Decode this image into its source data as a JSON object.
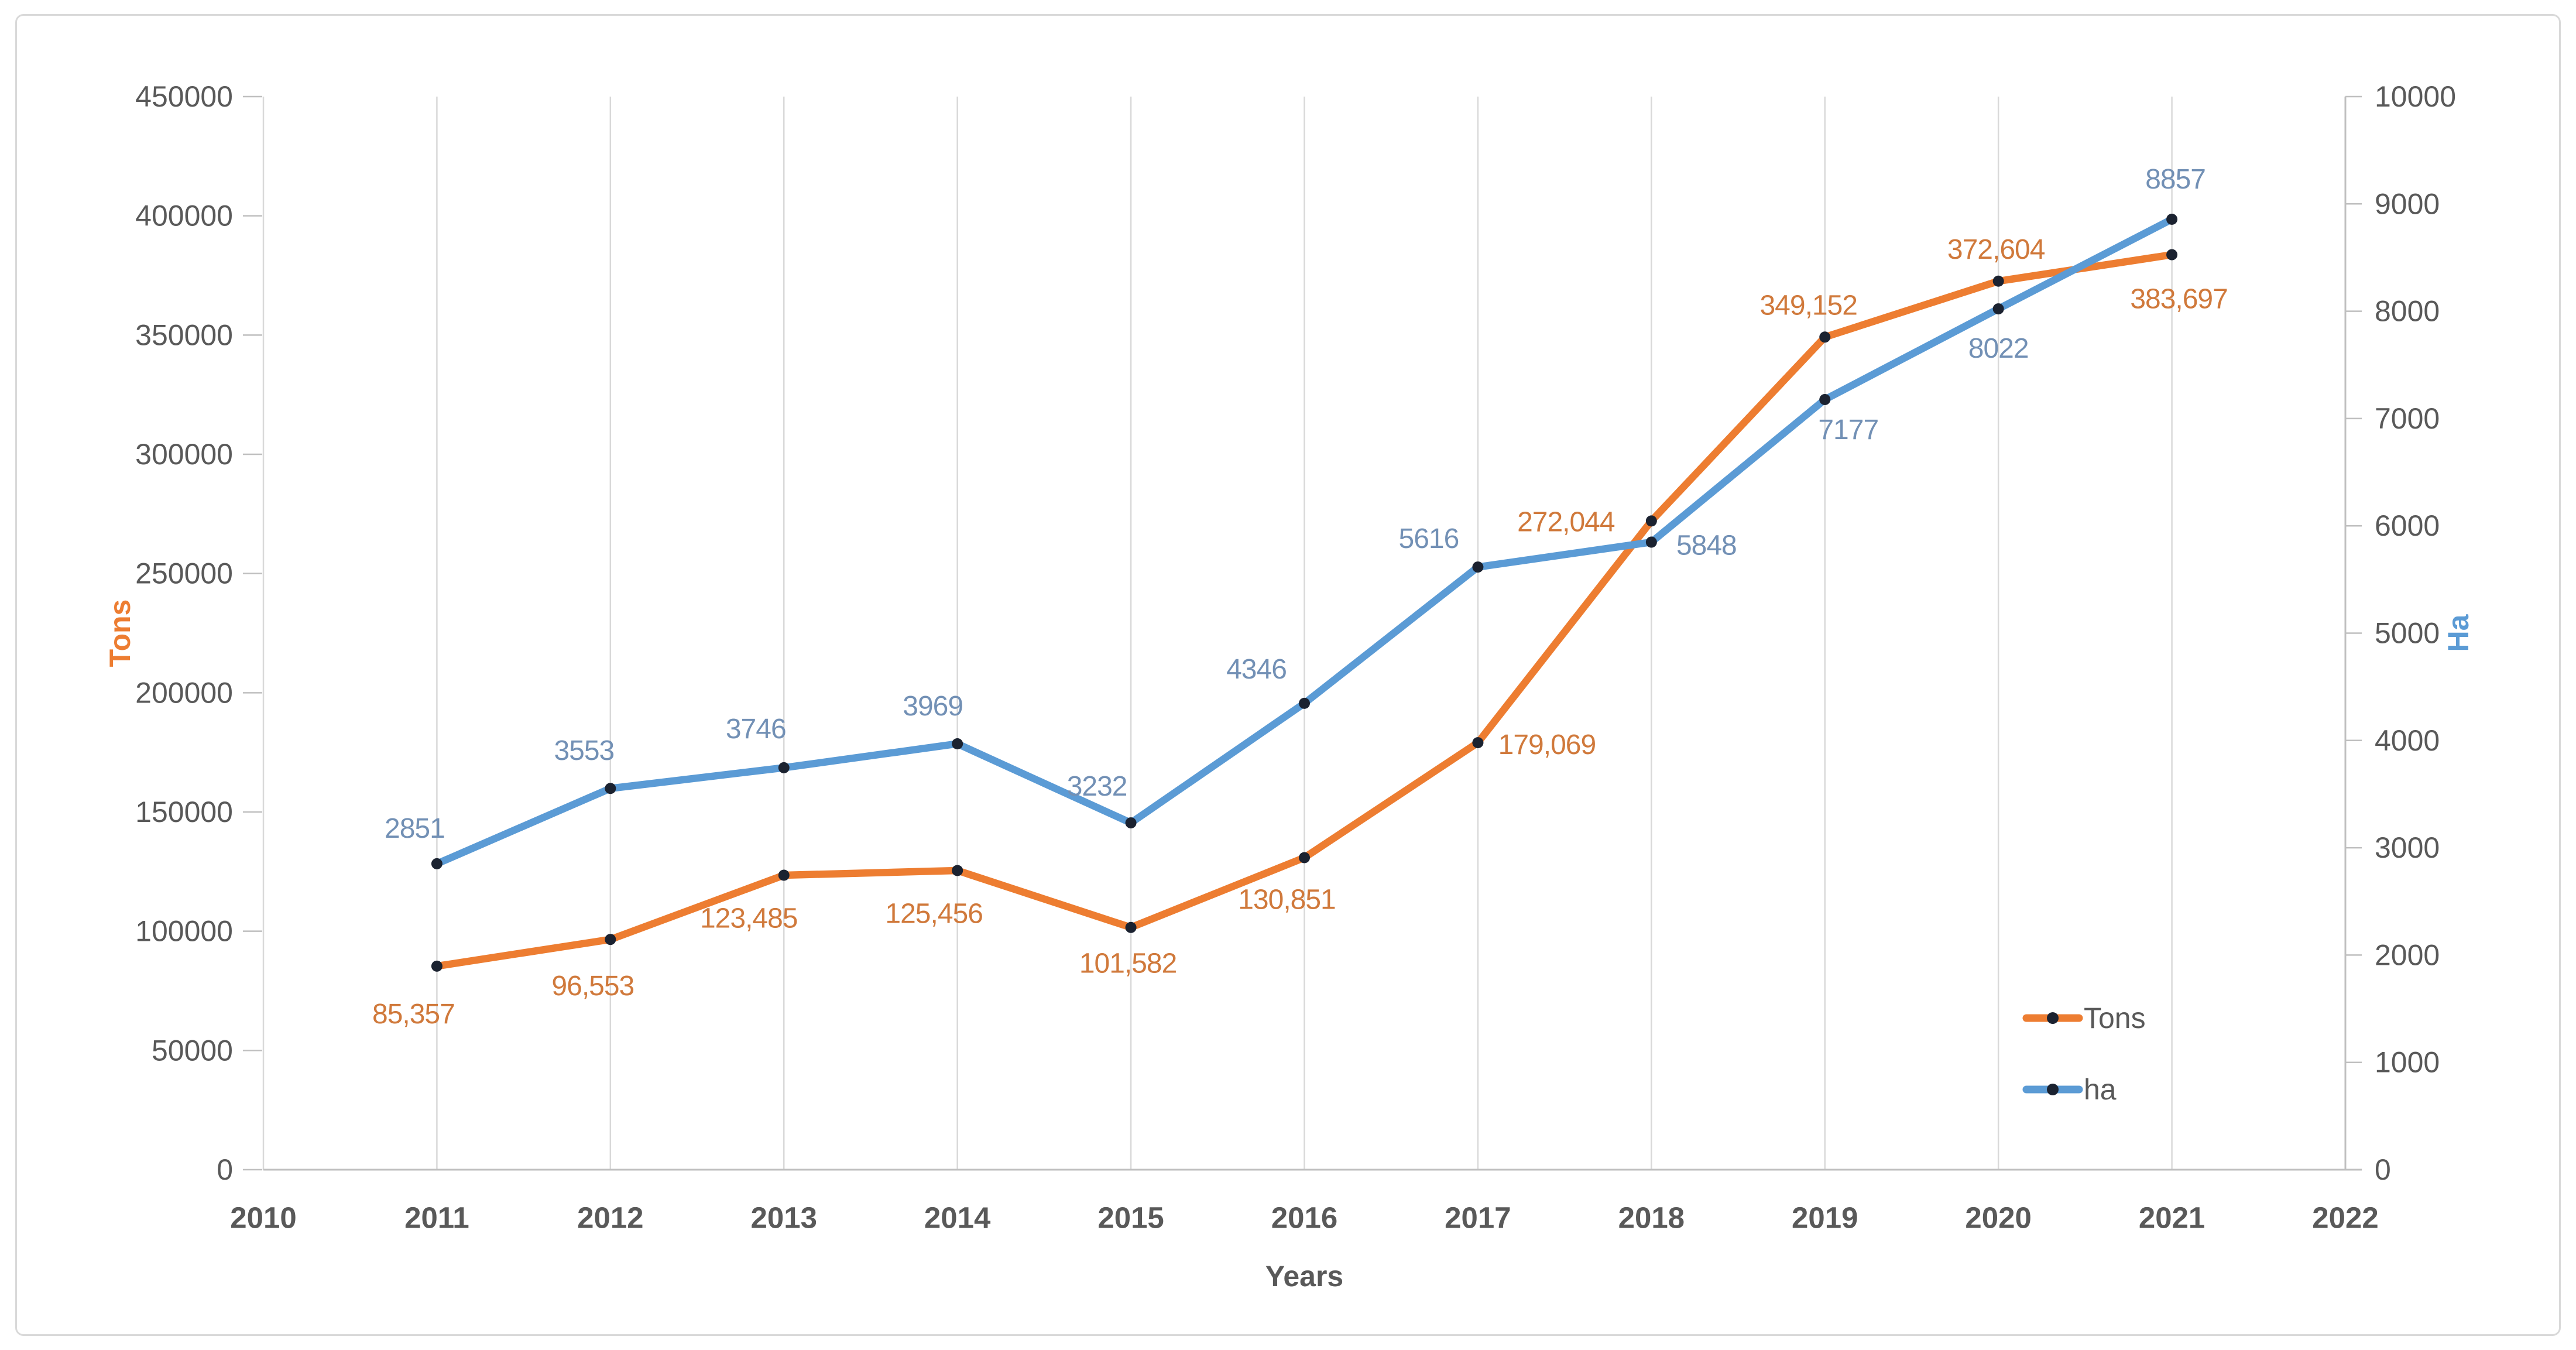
{
  "canvas": {
    "background": "#FFFFFF",
    "border_color": "#D9D9D9"
  },
  "chart_data": {
    "type": "line",
    "x": [
      2011,
      2012,
      2013,
      2014,
      2015,
      2016,
      2017,
      2018,
      2019,
      2020,
      2021
    ],
    "x_axis": {
      "title": "Years",
      "min": 2010,
      "max": 2022,
      "ticks": [
        "2010",
        "2011",
        "2012",
        "2013",
        "2014",
        "2015",
        "2016",
        "2017",
        "2018",
        "2019",
        "2020",
        "2021",
        "2022"
      ]
    },
    "left_axis": {
      "title": "Tons",
      "title_color": "#ED7D31",
      "min": 0,
      "max": 450000,
      "step": 50000,
      "ticks": [
        "0",
        "50000",
        "100000",
        "150000",
        "200000",
        "250000",
        "300000",
        "350000",
        "400000",
        "450000"
      ]
    },
    "right_axis": {
      "title": "Ha",
      "title_color": "#5B9BD5",
      "min": 0,
      "max": 10000,
      "step": 1000,
      "ticks": [
        "0",
        "1000",
        "2000",
        "3000",
        "4000",
        "5000",
        "6000",
        "7000",
        "8000",
        "9000",
        "10000"
      ]
    },
    "series": [
      {
        "name": "Tons",
        "axis": "left",
        "color": "#ED7D31",
        "label_color": "#D0793B",
        "values": [
          85357,
          96553,
          123485,
          125456,
          101582,
          130851,
          179069,
          272044,
          349152,
          372604,
          383697
        ],
        "labels": [
          "85,357",
          "96,553",
          "123,485",
          "125,456",
          "101,582",
          "130,851",
          "179,069",
          "272,044",
          "349,152",
          "372,604",
          "383,697"
        ],
        "label_offsets": [
          [
            -40,
            82
          ],
          [
            -30,
            80
          ],
          [
            -60,
            74
          ],
          [
            -40,
            74
          ],
          [
            -5,
            62
          ],
          [
            -30,
            72
          ],
          [
            118,
            4
          ],
          [
            -146,
            2
          ],
          [
            -28,
            -54
          ],
          [
            -4,
            -54
          ],
          [
            12,
            76
          ]
        ]
      },
      {
        "name": "ha",
        "axis": "right",
        "color": "#5B9BD5",
        "label_color": "#7290B5",
        "values": [
          2851,
          3553,
          3746,
          3969,
          3232,
          4346,
          5616,
          5848,
          7177,
          8022,
          8857
        ],
        "labels": [
          "2851",
          "3553",
          "3746",
          "3969",
          "3232",
          "4346",
          "5616",
          "5848",
          "7177",
          "8022",
          "8857"
        ],
        "label_offsets": [
          [
            -38,
            -60
          ],
          [
            -45,
            -64
          ],
          [
            -48,
            -66
          ],
          [
            -42,
            -64
          ],
          [
            -58,
            -62
          ],
          [
            -82,
            -58
          ],
          [
            -84,
            -48
          ],
          [
            94,
            6
          ],
          [
            40,
            52
          ],
          [
            0,
            68
          ],
          [
            6,
            -68
          ]
        ]
      }
    ],
    "legend": {
      "position": "inside-right-bottom",
      "items": [
        {
          "label": "Tons",
          "color": "#ED7D31"
        },
        {
          "label": "ha",
          "color": "#5B9BD5"
        }
      ]
    },
    "grid": "vertical-only",
    "grid_color": "#D9D9D9",
    "axis_line_color": "#BFBFBF",
    "tick_label_color": "#595959",
    "marker_color": "#1B2230"
  }
}
